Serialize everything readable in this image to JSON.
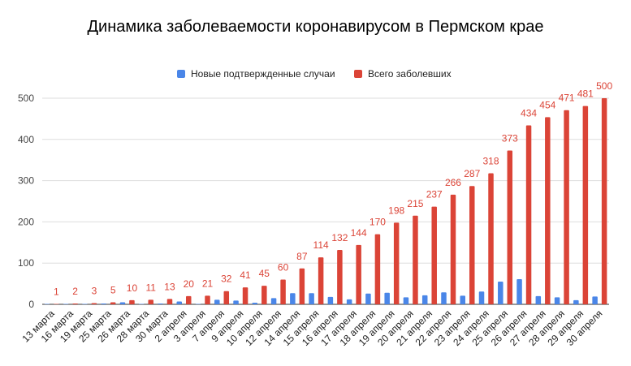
{
  "chart_data": {
    "type": "bar",
    "title": "Динамика заболеваемости коронавирусом в Пермском крае",
    "categories": [
      "13 марта",
      "16 марта",
      "19 марта",
      "25 марта",
      "26 марта",
      "28 марта",
      "30 марта",
      "2 апреля",
      "3 апреля",
      "7 апреля",
      "9 апреля",
      "10 апреля",
      "12 апреля",
      "14 апреля",
      "15 апреля",
      "16 апреля",
      "17 апреля",
      "18 апреля",
      "19 апреля",
      "20 апреля",
      "21 апреля",
      "22 апреля",
      "23 апреля",
      "24 апреля",
      "25 апреля",
      "26 апреля",
      "27 апреля",
      "28 апреля",
      "29 апреля",
      "30 апреля"
    ],
    "series": [
      {
        "name": "Новые подтвержденные случаи",
        "color": "#4a86e8",
        "values": [
          1,
          1,
          1,
          2,
          5,
          1,
          2,
          7,
          1,
          11,
          9,
          4,
          15,
          27,
          27,
          18,
          12,
          26,
          28,
          17,
          22,
          29,
          21,
          31,
          55,
          61,
          20,
          17,
          10,
          19
        ]
      },
      {
        "name": "Всего заболевших",
        "color": "#db4437",
        "values": [
          1,
          2,
          3,
          5,
          10,
          11,
          13,
          20,
          21,
          32,
          41,
          45,
          60,
          87,
          114,
          132,
          144,
          170,
          198,
          215,
          237,
          266,
          287,
          318,
          373,
          434,
          454,
          471,
          481,
          500
        ]
      }
    ],
    "data_labels_series": "Всего заболевших",
    "yticks": [
      0,
      100,
      200,
      300,
      400,
      500
    ],
    "ylim": [
      0,
      500
    ],
    "grid": true,
    "legend_position": "top"
  }
}
